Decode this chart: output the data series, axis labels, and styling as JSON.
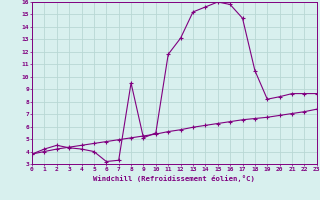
{
  "xlabel": "Windchill (Refroidissement éolien,°C)",
  "background_color": "#d8f0ee",
  "line_color": "#800080",
  "grid_color": "#b8d8d4",
  "xlim": [
    0,
    23
  ],
  "ylim": [
    3,
    16
  ],
  "yticks": [
    3,
    4,
    5,
    6,
    7,
    8,
    9,
    10,
    11,
    12,
    13,
    14,
    15,
    16
  ],
  "xticks": [
    0,
    1,
    2,
    3,
    4,
    5,
    6,
    7,
    8,
    9,
    10,
    11,
    12,
    13,
    14,
    15,
    16,
    17,
    18,
    19,
    20,
    21,
    22,
    23
  ],
  "curve1_x": [
    0,
    1,
    2,
    3,
    4,
    5,
    6,
    7,
    8,
    9,
    10,
    11,
    12,
    13,
    14,
    15,
    16,
    17,
    18,
    19,
    20,
    21,
    22,
    23
  ],
  "curve1_y": [
    3.8,
    4.2,
    4.5,
    4.3,
    4.2,
    4.0,
    3.2,
    3.3,
    9.5,
    5.1,
    5.5,
    11.8,
    13.1,
    15.2,
    15.6,
    16.0,
    15.8,
    14.7,
    10.5,
    8.2,
    8.4,
    8.65,
    8.65,
    8.65
  ],
  "curve2_x": [
    0,
    1,
    2,
    3,
    4,
    5,
    6,
    7,
    8,
    9,
    10,
    11,
    12,
    13,
    14,
    15,
    16,
    17,
    18,
    19,
    20,
    21,
    22,
    23
  ],
  "curve2_y": [
    3.8,
    4.0,
    4.2,
    4.35,
    4.5,
    4.65,
    4.8,
    4.95,
    5.1,
    5.25,
    5.4,
    5.6,
    5.75,
    5.95,
    6.1,
    6.25,
    6.4,
    6.55,
    6.65,
    6.75,
    6.9,
    7.05,
    7.2,
    7.4
  ]
}
